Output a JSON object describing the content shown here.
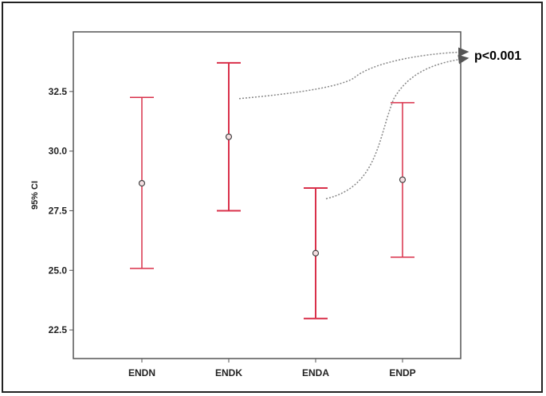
{
  "chart_data": {
    "type": "errorbar",
    "categories": [
      "ENDN",
      "ENDK",
      "ENDA",
      "ENDP"
    ],
    "mean": [
      28.65,
      30.6,
      25.72,
      28.8
    ],
    "lower": [
      25.08,
      27.5,
      22.98,
      25.55
    ],
    "upper": [
      32.25,
      33.7,
      28.45,
      32.03
    ],
    "ylabel": "95% CI",
    "xlabel": "",
    "ylim": [
      21.3,
      35.0
    ],
    "yticks": [
      "22.5",
      "25.0",
      "27.5",
      "30.0",
      "32.5"
    ],
    "annotation": "p<0.001",
    "colors": {
      "errorbar": "#d9304a",
      "annotation_line": "#888888",
      "axis": "#555555"
    }
  }
}
